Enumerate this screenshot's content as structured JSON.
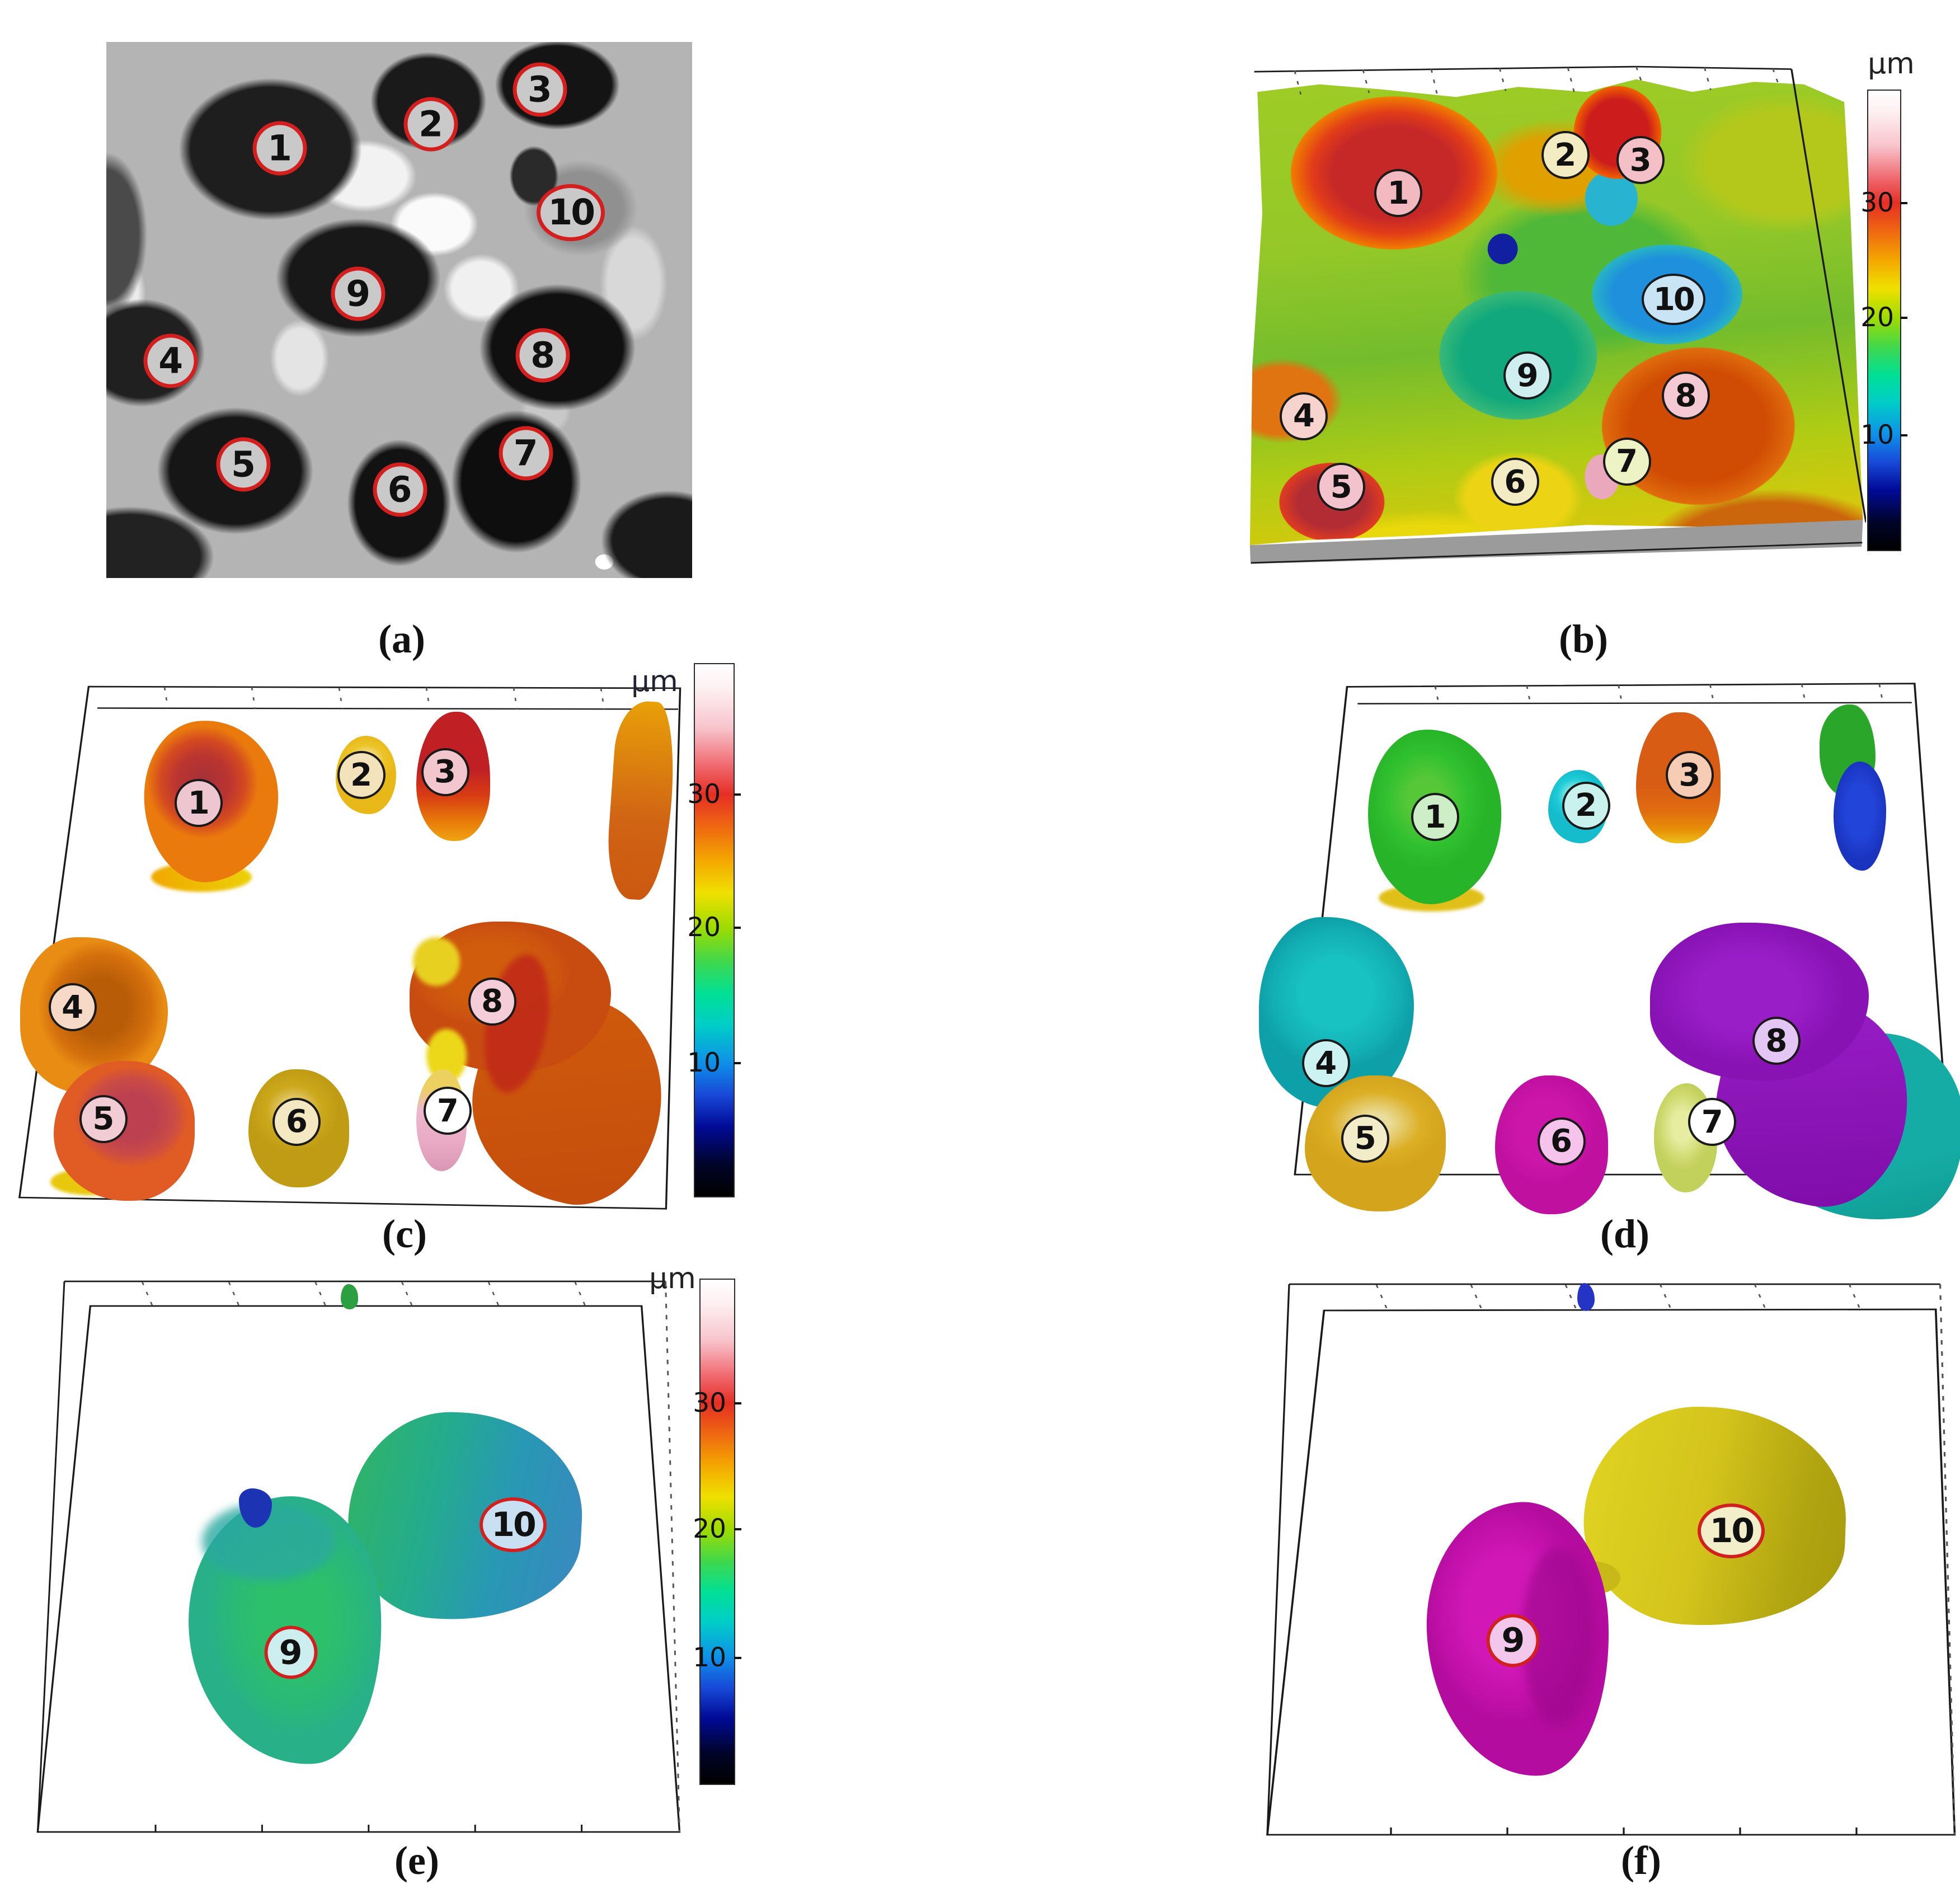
{
  "figure_captions": {
    "a": "(a)",
    "b": "(b)",
    "c": "(c)",
    "d": "(d)",
    "e": "(e)",
    "f": "(f)"
  },
  "colorbar": {
    "unit": "µm",
    "ticks": [
      {
        "label": "30",
        "pct": 24.5
      },
      {
        "label": "20",
        "pct": 49.5
      },
      {
        "label": "10",
        "pct": 75
      }
    ]
  },
  "panels": {
    "a": {
      "marker_ring": "#d41f1f",
      "marker_fill": "#c9c9c9",
      "markers": [
        {
          "n": "1",
          "x": 29.6,
          "y": 19.8
        },
        {
          "n": "2",
          "x": 55.4,
          "y": 15.3
        },
        {
          "n": "3",
          "x": 74.0,
          "y": 8.9
        },
        {
          "n": "10",
          "x": 79.3,
          "y": 31.8
        },
        {
          "n": "9",
          "x": 43.0,
          "y": 47.0
        },
        {
          "n": "4",
          "x": 11.0,
          "y": 59.5
        },
        {
          "n": "8",
          "x": 74.5,
          "y": 58.5
        },
        {
          "n": "5",
          "x": 23.4,
          "y": 78.8
        },
        {
          "n": "6",
          "x": 50.1,
          "y": 83.5
        },
        {
          "n": "7",
          "x": 71.6,
          "y": 76.7
        }
      ]
    },
    "b": {
      "marker_ring": "#1a1a1a",
      "markers": [
        {
          "n": "1",
          "x": 24.7,
          "y": 26.0,
          "fill": "#f2b9c0"
        },
        {
          "n": "2",
          "x": 51.6,
          "y": 18.5,
          "fill": "#f3ecc3"
        },
        {
          "n": "3",
          "x": 63.7,
          "y": 19.5,
          "fill": "#f3c0c8"
        },
        {
          "n": "10",
          "x": 69.0,
          "y": 47.0,
          "fill": "#c9e4f5"
        },
        {
          "n": "9",
          "x": 45.5,
          "y": 62.0,
          "fill": "#cfeef0"
        },
        {
          "n": "4",
          "x": 9.5,
          "y": 70.0,
          "fill": "#f6d3cd"
        },
        {
          "n": "8",
          "x": 71.0,
          "y": 66.0,
          "fill": "#f5c9d3"
        },
        {
          "n": "5",
          "x": 15.5,
          "y": 84.0,
          "fill": "#f2c3cc"
        },
        {
          "n": "6",
          "x": 43.5,
          "y": 83.0,
          "fill": "#f3ebc4"
        },
        {
          "n": "7",
          "x": 61.5,
          "y": 79.0,
          "fill": "#eef3c6"
        }
      ]
    },
    "c": {
      "marker_ring": "#1a1a1a",
      "markers": [
        {
          "n": "1",
          "x": 27.1,
          "y": 24.0,
          "fill": "#eec6cf"
        },
        {
          "n": "2",
          "x": 51.3,
          "y": 18.8,
          "fill": "#f2e3bb"
        },
        {
          "n": "3",
          "x": 63.8,
          "y": 18.2,
          "fill": "#f2c6cc"
        },
        {
          "n": "4",
          "x": 8.3,
          "y": 62.0,
          "fill": "#f6d9c6"
        },
        {
          "n": "5",
          "x": 12.9,
          "y": 82.8,
          "fill": "#f2ccd4"
        },
        {
          "n": "6",
          "x": 41.7,
          "y": 83.3,
          "fill": "#f3e8c2"
        },
        {
          "n": "7",
          "x": 64.2,
          "y": 81.3,
          "fill": "#ffffff"
        },
        {
          "n": "8",
          "x": 70.8,
          "y": 60.9,
          "fill": "#f5cdd8"
        }
      ]
    },
    "d": {
      "marker_ring": "#1a1a1a",
      "markers": [
        {
          "n": "1",
          "x": 25.0,
          "y": 26.2,
          "fill": "#cdeec6"
        },
        {
          "n": "2",
          "x": 46.4,
          "y": 24.1,
          "fill": "#c9f2ee"
        },
        {
          "n": "3",
          "x": 61.1,
          "y": 18.5,
          "fill": "#f6cdb4"
        },
        {
          "n": "4",
          "x": 9.5,
          "y": 71.3,
          "fill": "#cdf2f2"
        },
        {
          "n": "5",
          "x": 15.1,
          "y": 85.1,
          "fill": "#f3ecc9"
        },
        {
          "n": "6",
          "x": 42.9,
          "y": 85.6,
          "fill": "#f6c3ec"
        },
        {
          "n": "7",
          "x": 64.3,
          "y": 82.1,
          "fill": "#ffffff"
        },
        {
          "n": "8",
          "x": 73.4,
          "y": 67.2,
          "fill": "#e3c6f3"
        }
      ]
    },
    "e": {
      "marker_ring": "#d41f1f",
      "markers": [
        {
          "n": "9",
          "x": 40.3,
          "y": 66.8,
          "fill": "#cdeeee"
        },
        {
          "n": "10",
          "x": 73.7,
          "y": 44.0,
          "fill": "#c9e0f3"
        }
      ]
    },
    "f": {
      "marker_ring": "#d41f1f",
      "markers": [
        {
          "n": "9",
          "x": 38.8,
          "y": 64.7,
          "fill": "#f3c6ec"
        },
        {
          "n": "10",
          "x": 68.8,
          "y": 45.1,
          "fill": "#f2eec9"
        }
      ]
    }
  }
}
